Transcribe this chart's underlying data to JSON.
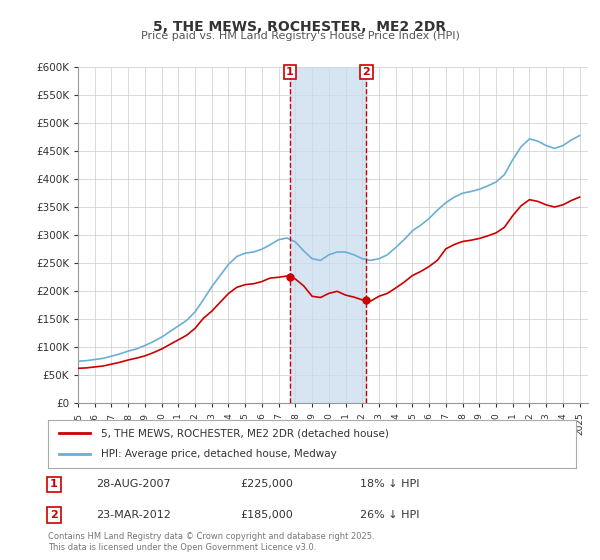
{
  "title": "5, THE MEWS, ROCHESTER,  ME2 2DR",
  "subtitle": "Price paid vs. HM Land Registry's House Price Index (HPI)",
  "ylabel": "",
  "ylim": [
    0,
    600000
  ],
  "yticks": [
    0,
    50000,
    100000,
    150000,
    200000,
    250000,
    300000,
    350000,
    400000,
    450000,
    500000,
    550000,
    600000
  ],
  "ytick_labels": [
    "£0",
    "£50K",
    "£100K",
    "£150K",
    "£200K",
    "£250K",
    "£300K",
    "£350K",
    "£400K",
    "£450K",
    "£500K",
    "£550K",
    "£600K"
  ],
  "hpi_color": "#6baed6",
  "price_color": "#cc0000",
  "shade_color": "#c6dbef",
  "marker_color": "#cc0000",
  "transaction1": {
    "date": "28-AUG-2007",
    "price": 225000,
    "hpi_pct": "18% ↓ HPI",
    "label": "1"
  },
  "transaction2": {
    "date": "23-MAR-2012",
    "price": 185000,
    "hpi_pct": "26% ↓ HPI",
    "label": "2"
  },
  "legend_line1": "5, THE MEWS, ROCHESTER, ME2 2DR (detached house)",
  "legend_line2": "HPI: Average price, detached house, Medway",
  "footnote": "Contains HM Land Registry data © Crown copyright and database right 2025.\nThis data is licensed under the Open Government Licence v3.0.",
  "background_color": "#ffffff",
  "plot_bg_color": "#ffffff",
  "grid_color": "#cccccc"
}
